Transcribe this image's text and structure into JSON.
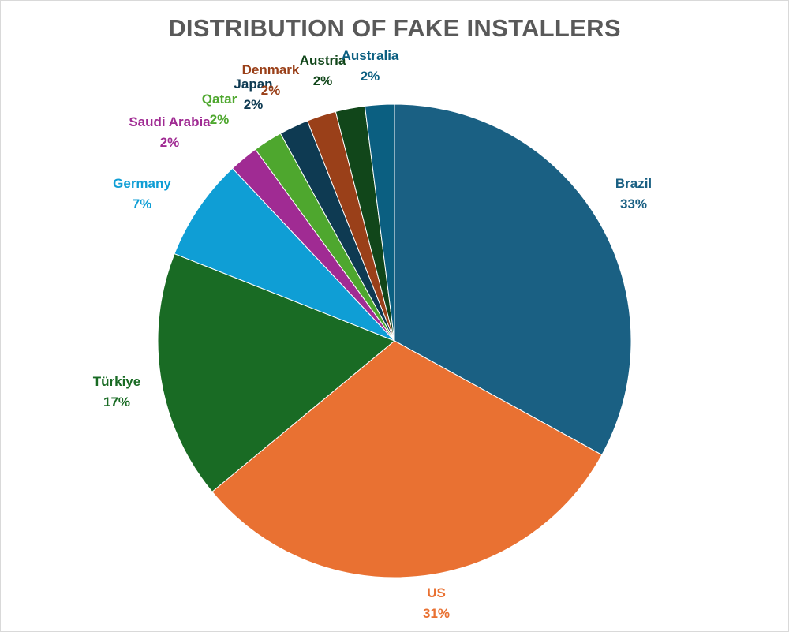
{
  "chart_data": {
    "type": "pie",
    "title": "DISTRIBUTION OF FAKE INSTALLERS",
    "title_color": "#595959",
    "categories": [
      "Brazil",
      "US",
      "Türkiye",
      "Germany",
      "Saudi Arabia",
      "Qatar",
      "Japan",
      "Denmark",
      "Austria",
      "Australia"
    ],
    "values": [
      33,
      31,
      17,
      7,
      2,
      2,
      2,
      2,
      2,
      2
    ],
    "value_labels": [
      "33%",
      "31%",
      "17%",
      "7%",
      "2%",
      "2%",
      "2%",
      "2%",
      "2%",
      "2%"
    ],
    "colors": [
      "#1a6083",
      "#e97132",
      "#196b24",
      "#0f9ed5",
      "#a02b93",
      "#4ea72e",
      "#0e3a52",
      "#9a4019",
      "#11461a",
      "#0b5f81"
    ],
    "legend": "none",
    "start_angle_deg": 0,
    "direction": "clockwise"
  }
}
